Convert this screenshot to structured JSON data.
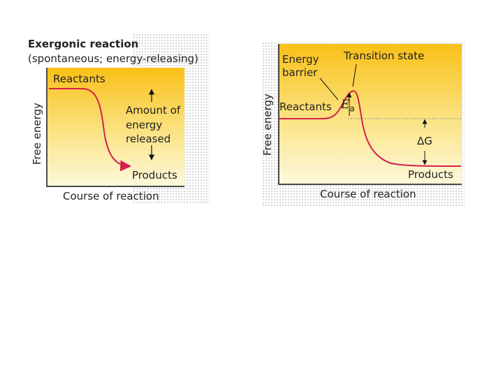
{
  "left_panel": {
    "title": "Exergonic reaction",
    "subtitle": "(spontaneous; energy-releasing)",
    "y_label": "Free energy",
    "x_label": "Course of reaction",
    "reactants_label": "Reactants",
    "products_label": "Products",
    "energy_released_label": [
      "Amount of",
      "energy",
      "released"
    ]
  },
  "right_panel": {
    "y_label": "Free energy",
    "x_label": "Course of reaction",
    "energy_barrier_label": [
      "Energy",
      "barrier"
    ],
    "transition_state_label": "Transition state",
    "reactants_label": "Reactants",
    "products_label": "Products",
    "activation_energy_symbol": "E",
    "activation_energy_subscript": "a",
    "delta_g_label": "ΔG"
  },
  "colors": {
    "gradient_top": "#f9c016",
    "gradient_bottom": "#fdf9dd",
    "curve": "#d6204e",
    "axis": "#111111"
  }
}
